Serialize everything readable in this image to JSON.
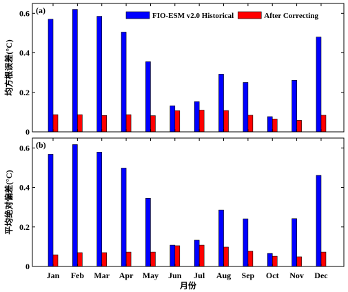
{
  "chart_data": [
    {
      "type": "bar",
      "panel_label": "(a)",
      "ylabel": "均方根误差(°C)",
      "ylim": [
        0,
        0.65
      ],
      "yticks": [
        0,
        0.2,
        0.4,
        0.6
      ],
      "grid": false,
      "legend": "top-right",
      "series": [
        {
          "name": "FIO-ESM v2.0 Historical",
          "color": "#0000ff",
          "values": [
            0.57,
            0.62,
            0.585,
            0.505,
            0.355,
            0.132,
            0.153,
            0.292,
            0.25,
            0.077,
            0.261,
            0.48
          ]
        },
        {
          "name": "After Correcting",
          "color": "#ff0000",
          "values": [
            0.087,
            0.087,
            0.083,
            0.087,
            0.082,
            0.107,
            0.11,
            0.108,
            0.084,
            0.065,
            0.058,
            0.084
          ]
        }
      ]
    },
    {
      "type": "bar",
      "panel_label": "(b)",
      "ylabel": "平均绝对偏差(°C)",
      "xlabel": "月份",
      "categories": [
        "Jan",
        "Feb",
        "Mar",
        "Apr",
        "May",
        "Jun",
        "Jul",
        "Aug",
        "Sep",
        "Oct",
        "Nov",
        "Dec"
      ],
      "ylim": [
        0,
        0.65
      ],
      "yticks": [
        0,
        0.2,
        0.4,
        0.6
      ],
      "grid": false,
      "series": [
        {
          "color": "#0000ff",
          "values": [
            0.568,
            0.617,
            0.579,
            0.498,
            0.345,
            0.108,
            0.133,
            0.286,
            0.241,
            0.066,
            0.242,
            0.461
          ]
        },
        {
          "color": "#ff0000",
          "values": [
            0.059,
            0.07,
            0.07,
            0.073,
            0.073,
            0.105,
            0.108,
            0.098,
            0.077,
            0.052,
            0.049,
            0.073
          ]
        }
      ]
    }
  ]
}
